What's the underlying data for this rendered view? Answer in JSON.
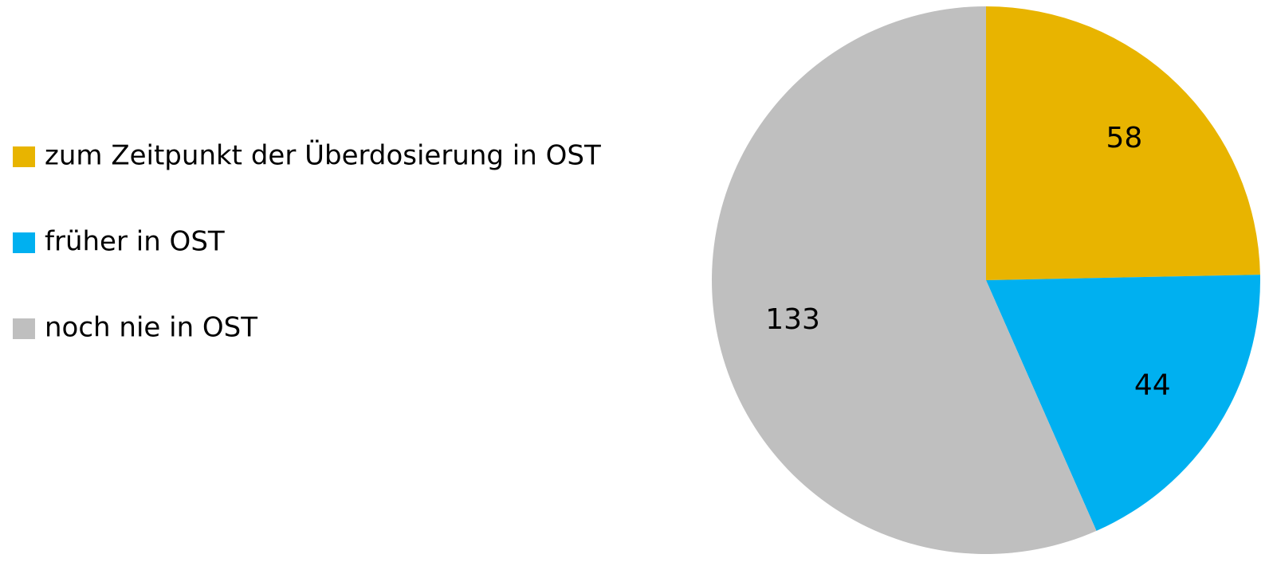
{
  "chart_data": {
    "type": "pie",
    "categories": [
      "zum Zeitpunkt der Überdosierung in OST",
      "früher in OST",
      "noch nie in OST"
    ],
    "values": [
      58,
      44,
      133
    ],
    "colors": [
      "#E8B400",
      "#00B0F0",
      "#BFBFBF"
    ],
    "legend": "left"
  }
}
